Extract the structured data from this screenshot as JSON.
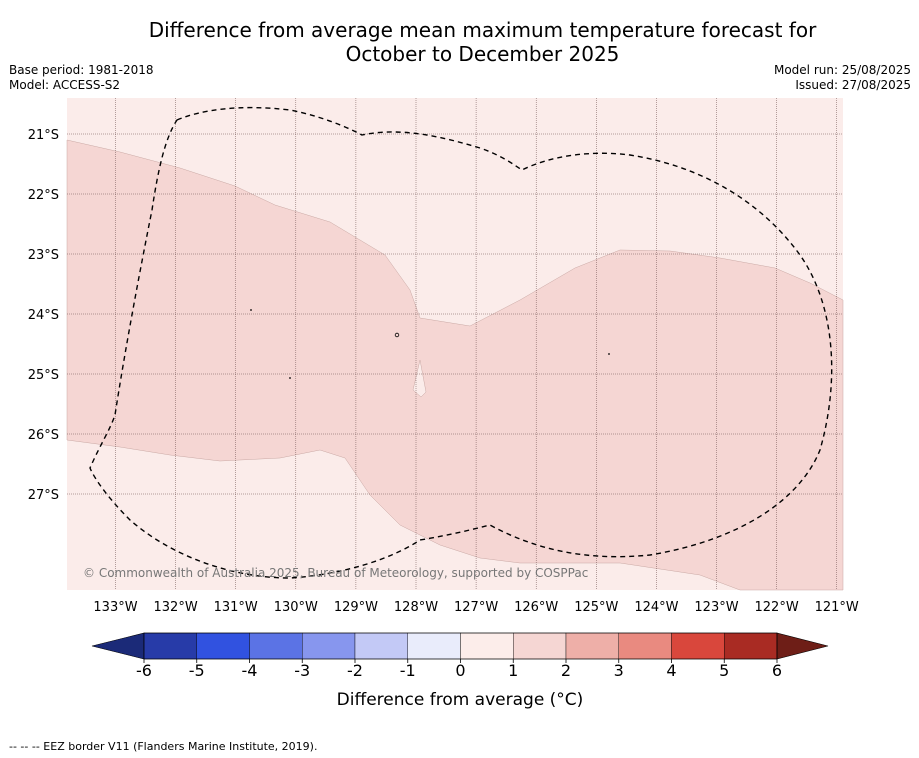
{
  "title_line1": "Difference from average mean maximum temperature forecast for",
  "title_line2": "October to December 2025",
  "meta": {
    "base_period": "Base period: 1981-2018",
    "model": "Model: ACCESS-S2",
    "model_run": "Model run: 25/08/2025",
    "issued": "Issued: 27/08/2025"
  },
  "map": {
    "latitude_labels": [
      "21°S",
      "22°S",
      "23°S",
      "24°S",
      "25°S",
      "26°S",
      "27°S"
    ],
    "longitude_labels": [
      "133°W",
      "132°W",
      "131°W",
      "130°W",
      "129°W",
      "128°W",
      "127°W",
      "126°W",
      "125°W",
      "124°W",
      "123°W",
      "122°W",
      "121°W"
    ],
    "copyright": "© Commonwealth of Australia 2025, Bureau of Meteorology, supported by COSPPac",
    "colors": {
      "anomaly_0_1": "#fbecea",
      "anomaly_1_2": "#f5d6d3",
      "gridline": "#6b4c4c",
      "eez_border": "#000000"
    }
  },
  "colorbar": {
    "title": "Difference from average (°C)",
    "tick_labels": [
      "-6",
      "-5",
      "-4",
      "-3",
      "-2",
      "-1",
      "0",
      "1",
      "2",
      "3",
      "4",
      "5",
      "6"
    ],
    "segment_colors": [
      "#273ba8",
      "#3152e0",
      "#5b73e5",
      "#8796ee",
      "#c3c9f6",
      "#e9ecfb",
      "#fcedea",
      "#f5d6d3",
      "#eeafa8",
      "#e98a80",
      "#d9473c",
      "#a92b23"
    ],
    "under_color": "#1b2a78",
    "over_color": "#6e1e17"
  },
  "footnote": "--  --  -- EEZ border V11 (Flanders Marine Institute, 2019)."
}
